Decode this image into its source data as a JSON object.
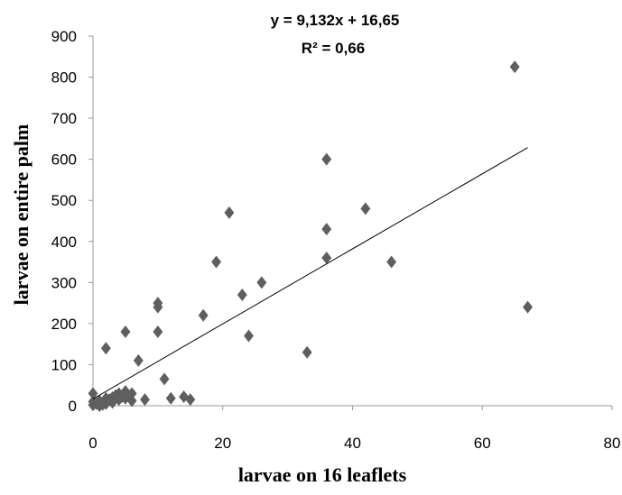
{
  "chart_data": {
    "type": "scatter",
    "title": "",
    "xlabel": "larvae on 16 leaflets",
    "ylabel": "larvae on entire palm",
    "xlim": [
      0,
      80
    ],
    "ylim": [
      0,
      900
    ],
    "xticks": [
      0,
      20,
      40,
      60,
      80
    ],
    "yticks": [
      0,
      100,
      200,
      300,
      400,
      500,
      600,
      700,
      800,
      900
    ],
    "grid": false,
    "legend": "none",
    "marker": "diamond",
    "marker_color": "#5f5f5f",
    "trendline": {
      "type": "linear",
      "slope": 9.132,
      "intercept": 16.65,
      "x_range": [
        0,
        67
      ],
      "color": "#000000",
      "equation_label": "y = 9,132x + 16,65",
      "r2_label": "R² = 0,66"
    },
    "points": [
      {
        "x": 0,
        "y": 30
      },
      {
        "x": 0,
        "y": 10
      },
      {
        "x": 0,
        "y": 2
      },
      {
        "x": 0.5,
        "y": 5
      },
      {
        "x": 1,
        "y": 0
      },
      {
        "x": 1,
        "y": 12
      },
      {
        "x": 1.5,
        "y": 3
      },
      {
        "x": 2,
        "y": 18
      },
      {
        "x": 2,
        "y": 5
      },
      {
        "x": 2.5,
        "y": 15
      },
      {
        "x": 3,
        "y": 20
      },
      {
        "x": 3,
        "y": 8
      },
      {
        "x": 3.5,
        "y": 25
      },
      {
        "x": 4,
        "y": 15
      },
      {
        "x": 4,
        "y": 30
      },
      {
        "x": 4.5,
        "y": 22
      },
      {
        "x": 5,
        "y": 35
      },
      {
        "x": 5,
        "y": 18
      },
      {
        "x": 5.5,
        "y": 25
      },
      {
        "x": 6,
        "y": 30
      },
      {
        "x": 6,
        "y": 12
      },
      {
        "x": 2,
        "y": 140
      },
      {
        "x": 5,
        "y": 180
      },
      {
        "x": 7,
        "y": 110
      },
      {
        "x": 8,
        "y": 15
      },
      {
        "x": 10,
        "y": 250
      },
      {
        "x": 10,
        "y": 240
      },
      {
        "x": 10,
        "y": 180
      },
      {
        "x": 11,
        "y": 65
      },
      {
        "x": 12,
        "y": 18
      },
      {
        "x": 14,
        "y": 22
      },
      {
        "x": 15,
        "y": 15
      },
      {
        "x": 17,
        "y": 220
      },
      {
        "x": 19,
        "y": 350
      },
      {
        "x": 21,
        "y": 470
      },
      {
        "x": 23,
        "y": 270
      },
      {
        "x": 24,
        "y": 170
      },
      {
        "x": 26,
        "y": 300
      },
      {
        "x": 33,
        "y": 130
      },
      {
        "x": 36,
        "y": 600
      },
      {
        "x": 36,
        "y": 430
      },
      {
        "x": 36,
        "y": 360
      },
      {
        "x": 42,
        "y": 480
      },
      {
        "x": 46,
        "y": 350
      },
      {
        "x": 65,
        "y": 825
      },
      {
        "x": 67,
        "y": 240
      }
    ]
  }
}
